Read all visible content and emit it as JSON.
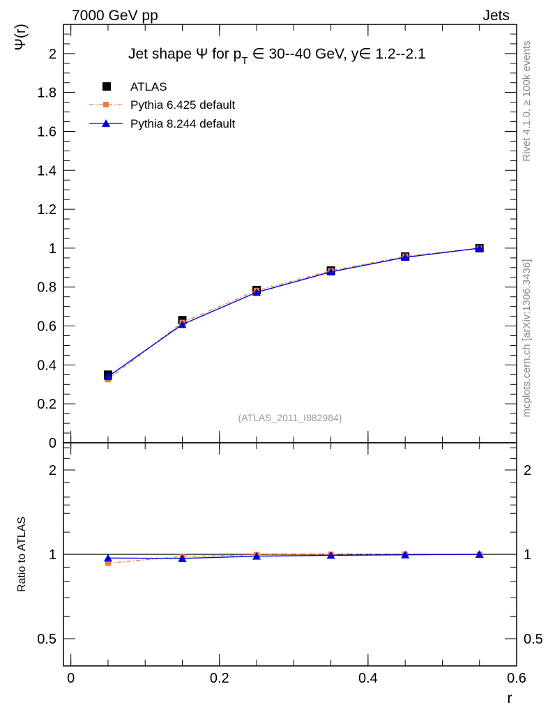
{
  "header": {
    "left": "7000 GeV pp",
    "right": "Jets"
  },
  "side_labels": {
    "rivet": "Rivet 4.1.0, ≥ 100k events",
    "mcplots": "mcplots.cern.ch [arXiv:1306.3436]"
  },
  "colors": {
    "atlas": "#000000",
    "pythia6": "#f07f36",
    "pythia8": "#0000dd",
    "watermark": "#999999",
    "side": "#888888"
  },
  "chart_data": [
    {
      "type": "line",
      "title_parts": {
        "a": "Jet shape ",
        "psi": "Ψ",
        "b": " for p",
        "sub": "T",
        "c": " ∈ 30--40 GeV, y∈ 1.2--2.1"
      },
      "ylabel": "Ψ(r)",
      "xlabel": "",
      "ylim": [
        0,
        2.15
      ],
      "xlim": [
        -0.01,
        0.6
      ],
      "yticks": [
        "0",
        "0.2",
        "0.4",
        "0.6",
        "0.8",
        "1",
        "1.2",
        "1.4",
        "1.6",
        "1.8",
        "2"
      ],
      "x": [
        0.05,
        0.15,
        0.25,
        0.35,
        0.45,
        0.55
      ],
      "series": [
        {
          "name": "ATLAS",
          "values": [
            0.35,
            0.63,
            0.785,
            0.885,
            0.957,
            1.0
          ],
          "style": "square"
        },
        {
          "name": "Pythia 6.425 default",
          "values": [
            0.325,
            0.618,
            0.782,
            0.884,
            0.958,
            1.0
          ],
          "style": "dashdot-square"
        },
        {
          "name": "Pythia 8.244 default",
          "values": [
            0.34,
            0.608,
            0.773,
            0.878,
            0.953,
            1.0
          ],
          "style": "solid-triangle"
        }
      ],
      "legend": [
        "ATLAS",
        "Pythia 6.425 default",
        "Pythia 8.244 default"
      ],
      "legend_position": "top-left",
      "watermark": "(ATLAS_2011_I882984)"
    },
    {
      "type": "line",
      "ylabel": "Ratio to ATLAS",
      "xlabel": "r",
      "ylim": [
        0.4,
        2.5
      ],
      "yscale": "log",
      "xlim": [
        -0.01,
        0.6
      ],
      "yticks": [
        "0.5",
        "1",
        "2"
      ],
      "xticks": [
        "0",
        "0.2",
        "0.4",
        "0.6"
      ],
      "x": [
        0.05,
        0.15,
        0.25,
        0.35,
        0.45,
        0.55
      ],
      "series": [
        {
          "name": "Pythia 6.425 default",
          "values": [
            0.93,
            0.983,
            0.997,
            0.999,
            1.001,
            1.0
          ]
        },
        {
          "name": "Pythia 8.244 default",
          "values": [
            0.97,
            0.967,
            0.985,
            0.992,
            0.996,
            1.0
          ]
        }
      ],
      "reference": 1.0
    }
  ]
}
